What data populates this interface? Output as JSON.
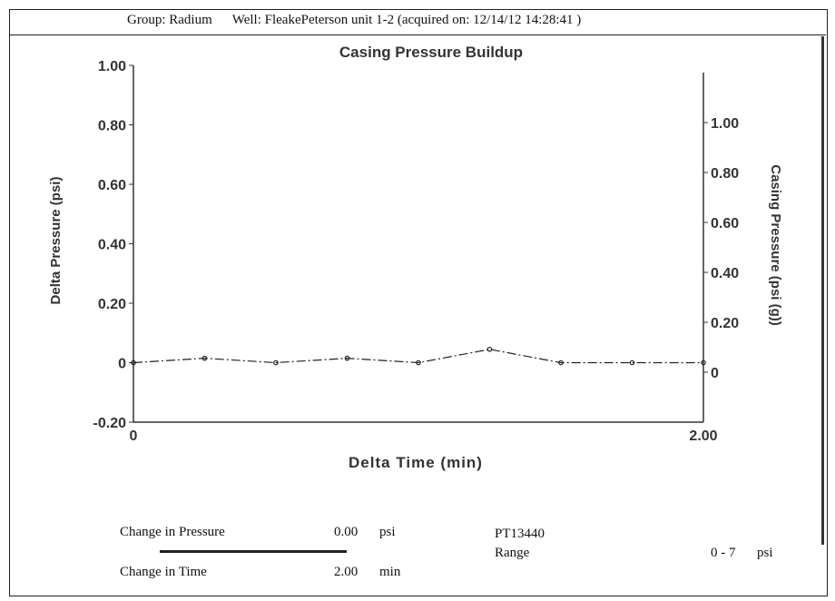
{
  "header": {
    "group": "Group: Radium",
    "well": "Well: FleakePeterson unit 1-2 (acquired on: 12/14/12 14:28:41 )"
  },
  "chart_data": {
    "type": "scatter",
    "title": "Casing Pressure Buildup",
    "xlabel": "Delta Time (min)",
    "ylabel": "Delta Pressure (psi)",
    "y2label": "Casing Pressure (psi (g))",
    "xlim": [
      0,
      2.0
    ],
    "ylim": [
      -0.2,
      1.0
    ],
    "y2lim": [
      -0.2,
      1.2
    ],
    "x_ticks": [
      "0",
      "2.00"
    ],
    "y_ticks": [
      "1.00",
      "0.80",
      "0.60",
      "0.40",
      "0.20",
      "0",
      "-0.20"
    ],
    "y2_ticks": [
      "1.00",
      "0.80",
      "0.60",
      "0.40",
      "0.20",
      "0"
    ],
    "grid": false,
    "series": [
      {
        "x": [
          0.0,
          0.25,
          0.5,
          0.75,
          1.0,
          1.25,
          1.5,
          1.75,
          2.0
        ],
        "values": [
          0.0,
          0.015,
          0.0,
          0.015,
          0.0,
          0.045,
          0.0,
          0.0,
          0.0
        ]
      }
    ],
    "colors": {
      "axis": "#333333",
      "series": "#222222"
    }
  },
  "footer": {
    "change_pressure_label": "Change in Pressure",
    "change_pressure_value": "0.00",
    "change_pressure_unit": "psi",
    "change_time_label": "Change in Time",
    "change_time_value": "2.00",
    "change_time_unit": "min",
    "sensor_id": "PT13440",
    "range_label": "Range",
    "range_value": "0 - 7",
    "range_unit": "psi"
  }
}
